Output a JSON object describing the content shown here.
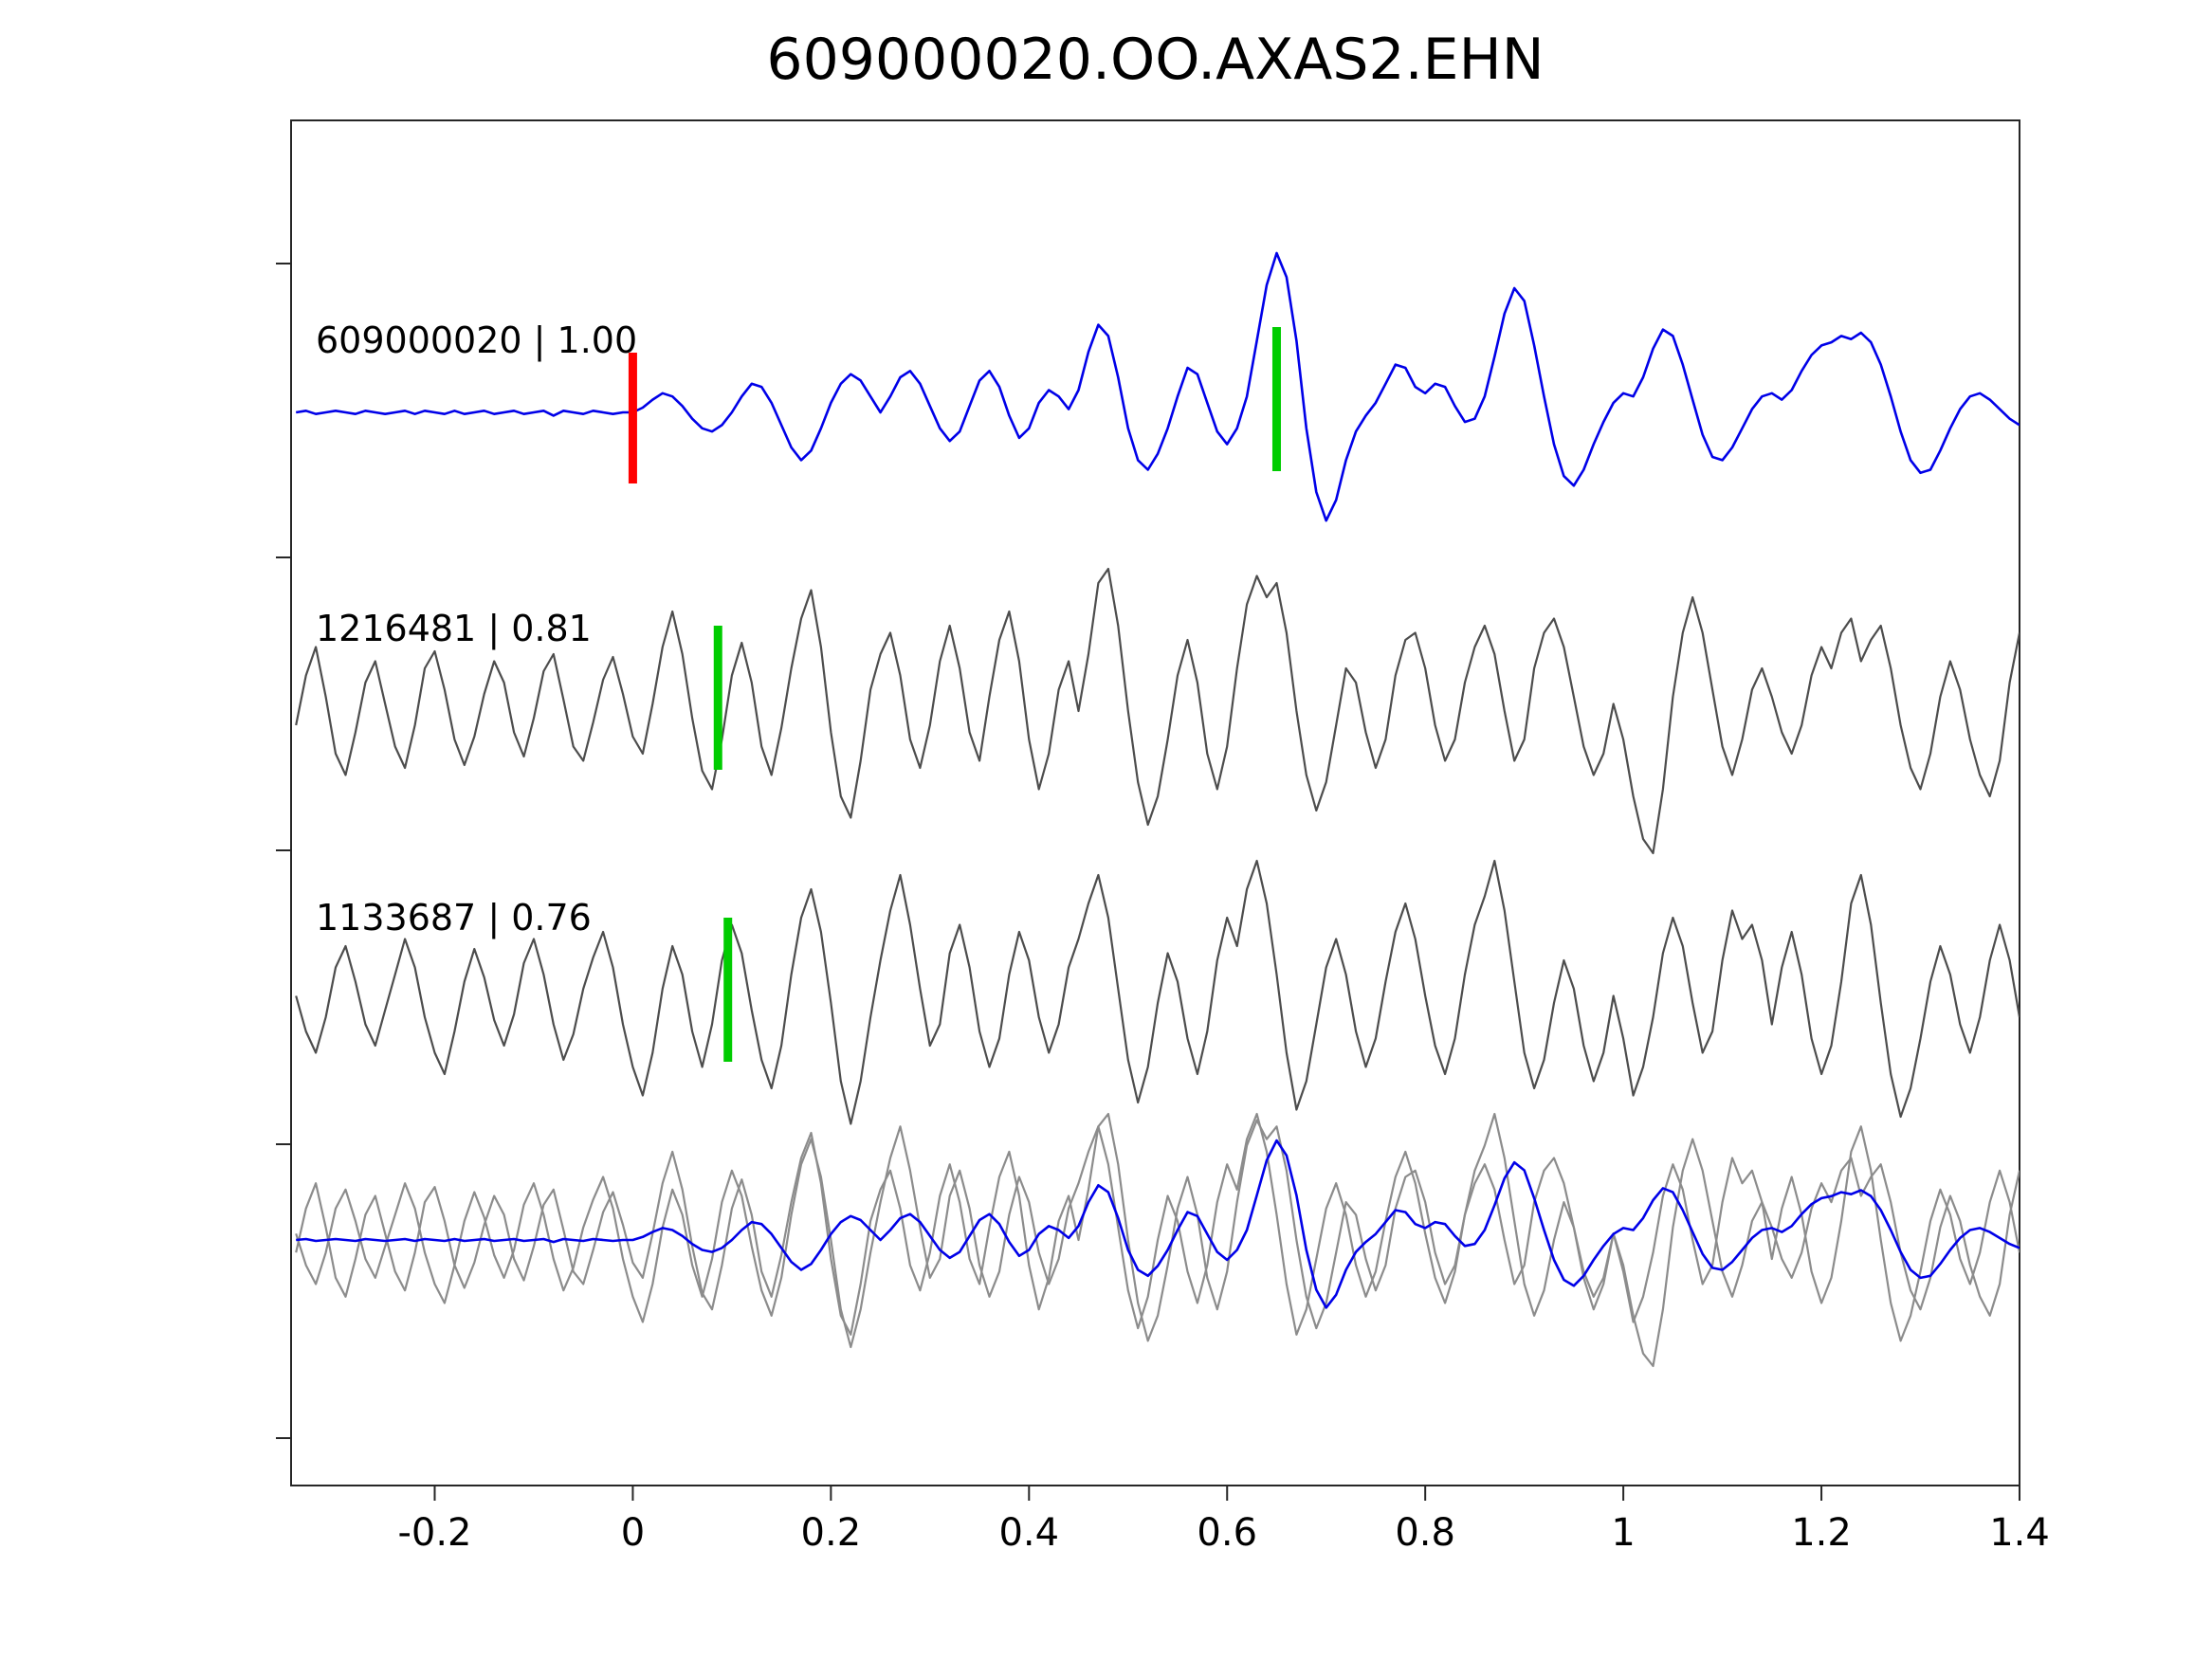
{
  "title": "609000020.OO.AXAS2.EHN",
  "colors": {
    "blue": "#0000e8",
    "gray": "#4d4d4d",
    "gray_light": "#8c8c8c",
    "red": "#ff0000",
    "green": "#00cc00",
    "axis": "#262626",
    "text": "#000000"
  },
  "chart_data": {
    "type": "line",
    "title": "609000020.OO.AXAS2.EHN",
    "xlabel": "",
    "ylabel": "",
    "xlim": [
      -0.345,
      1.4
    ],
    "grid": false,
    "legend": "none",
    "xticks": [
      -0.2,
      0,
      0.2,
      0.4,
      0.6,
      0.8,
      1,
      1.2,
      1.4
    ],
    "xtick_labels": [
      "-0.2",
      "0",
      "0.2",
      "0.4",
      "0.6",
      "0.8",
      "1",
      "1.2",
      "1.4"
    ],
    "t_start": -0.34,
    "dt": 0.01,
    "rows": [
      {
        "id": "template",
        "label": "609000020 | 1.00",
        "station": "609000020",
        "correlation": 1.0,
        "color_key": "blue",
        "markers": [
          {
            "x": 0.0,
            "color_key": "red"
          },
          {
            "x": 0.65,
            "color_key": "green"
          }
        ],
        "values": [
          0.0,
          0.01,
          -0.01,
          0.0,
          0.01,
          0.0,
          -0.01,
          0.01,
          0.0,
          -0.01,
          0.0,
          0.01,
          -0.01,
          0.01,
          0.0,
          -0.01,
          0.01,
          -0.01,
          0.0,
          0.01,
          -0.01,
          0.0,
          0.01,
          -0.01,
          0.0,
          0.01,
          -0.02,
          0.01,
          0.0,
          -0.01,
          0.01,
          0.0,
          -0.01,
          0.0,
          0.0,
          0.03,
          0.08,
          0.12,
          0.1,
          0.04,
          -0.04,
          -0.1,
          -0.12,
          -0.08,
          0.0,
          0.1,
          0.18,
          0.16,
          0.06,
          -0.08,
          -0.22,
          -0.3,
          -0.24,
          -0.1,
          0.06,
          0.18,
          0.24,
          0.2,
          0.1,
          0.0,
          0.1,
          0.22,
          0.26,
          0.18,
          0.04,
          -0.1,
          -0.18,
          -0.12,
          0.04,
          0.2,
          0.26,
          0.16,
          -0.02,
          -0.16,
          -0.1,
          0.06,
          0.14,
          0.1,
          0.02,
          0.14,
          0.38,
          0.55,
          0.48,
          0.22,
          -0.1,
          -0.3,
          -0.36,
          -0.26,
          -0.1,
          0.1,
          0.28,
          0.24,
          0.06,
          -0.12,
          -0.2,
          -0.1,
          0.1,
          0.45,
          0.8,
          1.0,
          0.85,
          0.45,
          -0.1,
          -0.5,
          -0.68,
          -0.55,
          -0.3,
          -0.12,
          -0.02,
          0.06,
          0.18,
          0.3,
          0.28,
          0.16,
          0.12,
          0.18,
          0.16,
          0.04,
          -0.06,
          -0.04,
          0.1,
          0.35,
          0.62,
          0.78,
          0.7,
          0.42,
          0.1,
          -0.2,
          -0.4,
          -0.46,
          -0.36,
          -0.2,
          -0.06,
          0.06,
          0.12,
          0.1,
          0.22,
          0.4,
          0.52,
          0.48,
          0.3,
          0.08,
          -0.14,
          -0.28,
          -0.3,
          -0.22,
          -0.1,
          0.02,
          0.1,
          0.12,
          0.08,
          0.14,
          0.26,
          0.36,
          0.42,
          0.44,
          0.48,
          0.46,
          0.5,
          0.44,
          0.3,
          0.1,
          -0.12,
          -0.3,
          -0.38,
          -0.36,
          -0.24,
          -0.1,
          0.02,
          0.1,
          0.12,
          0.08,
          0.02,
          -0.04,
          -0.08
        ]
      },
      {
        "id": "det1",
        "label": "1216481 | 0.81",
        "station": "1216481",
        "correlation": 0.81,
        "color_key": "gray",
        "markers": [
          {
            "x": 0.086,
            "color_key": "green"
          }
        ],
        "values": [
          -0.1,
          0.25,
          0.45,
          0.1,
          -0.3,
          -0.45,
          -0.15,
          0.2,
          0.35,
          0.05,
          -0.25,
          -0.4,
          -0.1,
          0.3,
          0.42,
          0.15,
          -0.2,
          -0.38,
          -0.18,
          0.12,
          0.35,
          0.2,
          -0.15,
          -0.32,
          -0.05,
          0.28,
          0.4,
          0.08,
          -0.25,
          -0.35,
          -0.08,
          0.22,
          0.38,
          0.12,
          -0.18,
          -0.3,
          0.05,
          0.45,
          0.7,
          0.4,
          -0.05,
          -0.42,
          -0.55,
          -0.2,
          0.25,
          0.48,
          0.2,
          -0.25,
          -0.45,
          -0.12,
          0.3,
          0.65,
          0.85,
          0.45,
          -0.15,
          -0.6,
          -0.75,
          -0.35,
          0.15,
          0.4,
          0.55,
          0.25,
          -0.2,
          -0.4,
          -0.1,
          0.35,
          0.6,
          0.3,
          -0.15,
          -0.35,
          0.1,
          0.5,
          0.7,
          0.35,
          -0.2,
          -0.55,
          -0.3,
          0.15,
          0.35,
          0.0,
          0.4,
          0.9,
          1.0,
          0.6,
          0.0,
          -0.5,
          -0.8,
          -0.6,
          -0.2,
          0.25,
          0.5,
          0.2,
          -0.3,
          -0.55,
          -0.25,
          0.3,
          0.75,
          0.95,
          0.8,
          0.9,
          0.55,
          0.0,
          -0.45,
          -0.7,
          -0.5,
          -0.1,
          0.3,
          0.2,
          -0.15,
          -0.4,
          -0.2,
          0.25,
          0.5,
          0.55,
          0.3,
          -0.1,
          -0.35,
          -0.2,
          0.2,
          0.45,
          0.6,
          0.4,
          0.0,
          -0.35,
          -0.2,
          0.3,
          0.55,
          0.65,
          0.45,
          0.1,
          -0.25,
          -0.45,
          -0.3,
          0.05,
          -0.2,
          -0.6,
          -0.9,
          -1.0,
          -0.55,
          0.1,
          0.55,
          0.8,
          0.55,
          0.15,
          -0.25,
          -0.45,
          -0.2,
          0.15,
          0.3,
          0.1,
          -0.15,
          -0.3,
          -0.1,
          0.25,
          0.45,
          0.3,
          0.55,
          0.65,
          0.35,
          0.5,
          0.6,
          0.3,
          -0.1,
          -0.4,
          -0.55,
          -0.3,
          0.1,
          0.35,
          0.15,
          -0.2,
          -0.45,
          -0.6,
          -0.35,
          0.2,
          0.55
        ]
      },
      {
        "id": "det2",
        "label": "1133687 | 0.76",
        "station": "1133687",
        "correlation": 0.76,
        "color_key": "gray",
        "markers": [
          {
            "x": 0.096,
            "color_key": "green"
          }
        ],
        "values": [
          0.05,
          -0.2,
          -0.35,
          -0.1,
          0.25,
          0.4,
          0.15,
          -0.15,
          -0.3,
          -0.05,
          0.2,
          0.45,
          0.25,
          -0.1,
          -0.35,
          -0.5,
          -0.2,
          0.15,
          0.38,
          0.18,
          -0.12,
          -0.3,
          -0.08,
          0.28,
          0.45,
          0.2,
          -0.15,
          -0.4,
          -0.22,
          0.1,
          0.32,
          0.5,
          0.25,
          -0.15,
          -0.45,
          -0.65,
          -0.35,
          0.1,
          0.4,
          0.2,
          -0.2,
          -0.45,
          -0.15,
          0.3,
          0.55,
          0.35,
          -0.05,
          -0.4,
          -0.6,
          -0.3,
          0.2,
          0.6,
          0.8,
          0.5,
          0.0,
          -0.55,
          -0.85,
          -0.55,
          -0.1,
          0.3,
          0.65,
          0.9,
          0.55,
          0.1,
          -0.3,
          -0.15,
          0.35,
          0.55,
          0.25,
          -0.2,
          -0.45,
          -0.25,
          0.2,
          0.5,
          0.3,
          -0.1,
          -0.35,
          -0.15,
          0.25,
          0.45,
          0.7,
          0.9,
          0.6,
          0.1,
          -0.4,
          -0.7,
          -0.45,
          0.0,
          0.35,
          0.15,
          -0.25,
          -0.5,
          -0.2,
          0.3,
          0.6,
          0.4,
          0.8,
          1.0,
          0.7,
          0.2,
          -0.35,
          -0.75,
          -0.55,
          -0.15,
          0.25,
          0.45,
          0.2,
          -0.2,
          -0.45,
          -0.25,
          0.15,
          0.5,
          0.7,
          0.45,
          0.05,
          -0.3,
          -0.5,
          -0.25,
          0.2,
          0.55,
          0.75,
          1.0,
          0.65,
          0.15,
          -0.35,
          -0.6,
          -0.4,
          0.0,
          0.3,
          0.1,
          -0.3,
          -0.55,
          -0.35,
          0.05,
          -0.25,
          -0.65,
          -0.45,
          -0.1,
          0.35,
          0.6,
          0.4,
          0.0,
          -0.35,
          -0.2,
          0.3,
          0.65,
          0.45,
          0.55,
          0.3,
          -0.15,
          0.25,
          0.5,
          0.2,
          -0.25,
          -0.5,
          -0.3,
          0.15,
          0.7,
          0.9,
          0.55,
          0.0,
          -0.5,
          -0.8,
          -0.6,
          -0.25,
          0.15,
          0.4,
          0.2,
          -0.15,
          -0.35,
          -0.1,
          0.3,
          0.55,
          0.3,
          -0.1
        ]
      },
      {
        "id": "overlay",
        "label": "",
        "overlay_of": [
          {
            "ref": "det1",
            "color_key": "gray_light",
            "shift": 0
          },
          {
            "ref": "det2",
            "color_key": "gray_light",
            "shift": 0
          },
          {
            "ref": "template",
            "color_key": "blue",
            "shift": 0
          }
        ]
      }
    ]
  }
}
